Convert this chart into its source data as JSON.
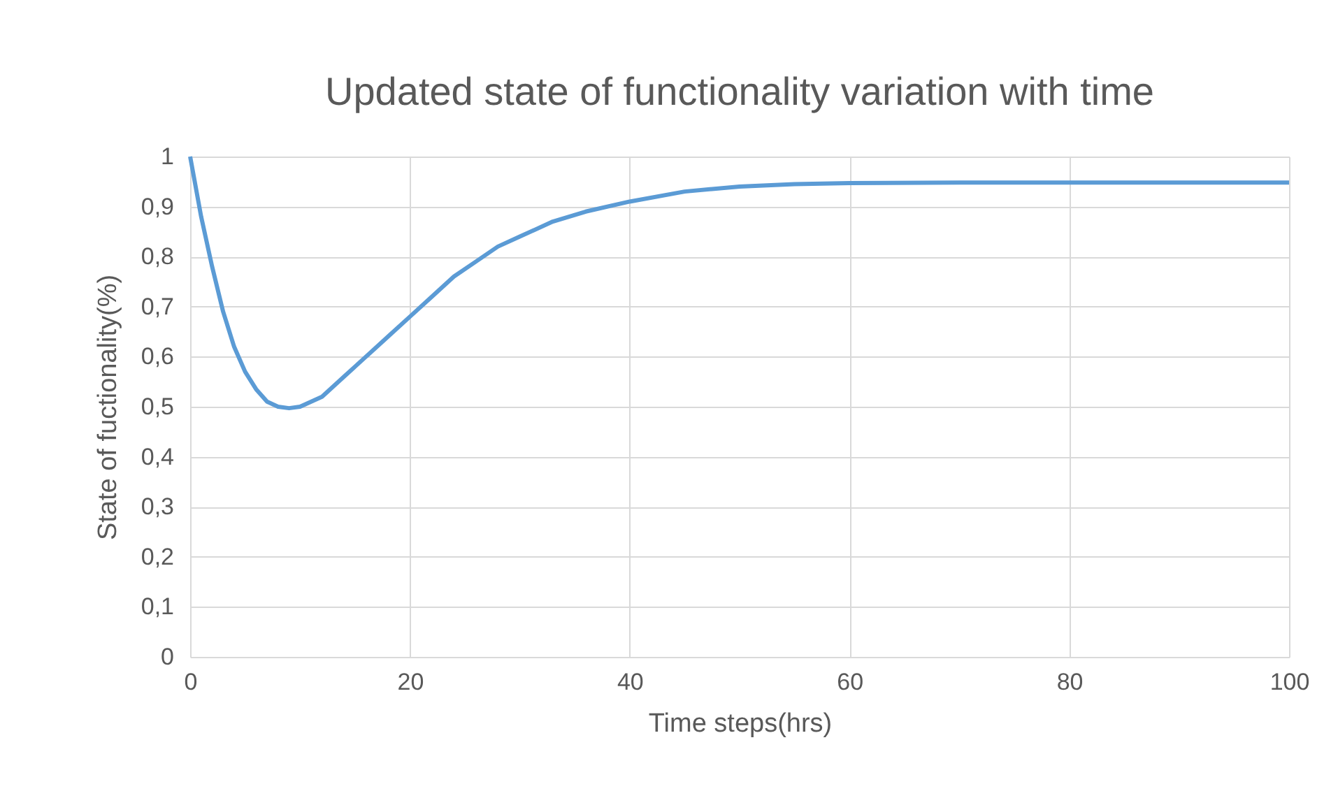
{
  "chart_data": {
    "type": "line",
    "title": "Updated state of functionality variation with time",
    "xlabel": "Time steps(hrs)",
    "ylabel": "State of fuctionality(%)",
    "x": [
      0,
      1,
      2,
      3,
      4,
      5,
      6,
      7,
      8,
      9,
      10,
      12,
      14,
      16,
      18,
      20,
      22,
      24,
      26,
      28,
      30,
      33,
      36,
      40,
      45,
      50,
      55,
      60,
      70,
      80,
      100
    ],
    "series": [
      {
        "color": "#5b9bd5",
        "values": [
          1,
          0.88,
          0.78,
          0.69,
          0.62,
          0.57,
          0.535,
          0.51,
          0.5,
          0.497,
          0.5,
          0.52,
          0.56,
          0.6,
          0.64,
          0.68,
          0.72,
          0.76,
          0.79,
          0.82,
          0.84,
          0.87,
          0.89,
          0.91,
          0.93,
          0.94,
          0.945,
          0.947,
          0.948,
          0.948,
          0.948
        ]
      }
    ],
    "xlim": [
      0,
      100
    ],
    "xticks": [
      0,
      20,
      40,
      60,
      80,
      100
    ],
    "ylim": [
      0,
      1
    ],
    "yticks": [
      0,
      {
        "value": 0.1,
        "label": "0,1"
      },
      {
        "value": 0.2,
        "label": "0,2"
      },
      {
        "value": 0.3,
        "label": "0,3"
      },
      {
        "value": 0.4,
        "label": "0,4"
      },
      {
        "value": 0.5,
        "label": "0,5"
      },
      {
        "value": 0.6,
        "label": "0,6"
      },
      {
        "value": 0.7,
        "label": "0,7"
      },
      {
        "value": 0.8,
        "label": "0,8"
      },
      {
        "value": 0.9,
        "label": "0,9"
      },
      1
    ],
    "grid": true,
    "marker": "none",
    "line_style": "solid"
  }
}
